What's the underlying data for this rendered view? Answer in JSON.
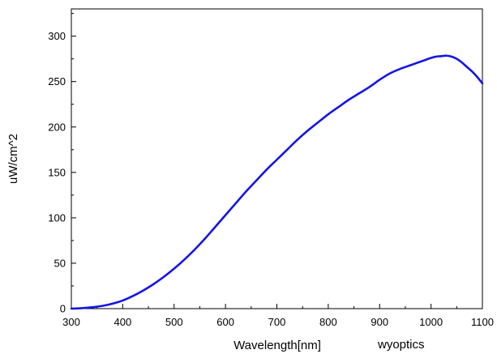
{
  "chart_data": {
    "type": "line",
    "title": "",
    "xlabel": "Wavelength[nm]",
    "ylabel": "uW/cm^2",
    "annotation": "wyoptics",
    "xlim": [
      300,
      1100
    ],
    "ylim": [
      0,
      330
    ],
    "x_ticks": [
      300,
      400,
      500,
      600,
      700,
      800,
      900,
      1000,
      1100
    ],
    "y_ticks": [
      0,
      50,
      100,
      150,
      200,
      250,
      300
    ],
    "grid": false,
    "line_color": "#1414e6",
    "series": [
      {
        "x": [
          300,
          320,
          340,
          360,
          380,
          400,
          420,
          440,
          460,
          480,
          500,
          520,
          540,
          560,
          580,
          600,
          620,
          640,
          660,
          680,
          700,
          720,
          740,
          760,
          780,
          800,
          820,
          840,
          860,
          880,
          900,
          920,
          940,
          960,
          980,
          1000,
          1010,
          1020,
          1030,
          1040,
          1050,
          1060,
          1070,
          1080,
          1090,
          1100
        ],
        "y": [
          0,
          0.5,
          1.5,
          3,
          5.5,
          9,
          14,
          20,
          27,
          35,
          44,
          54,
          65,
          77,
          90,
          103,
          116,
          129,
          141,
          153,
          164,
          175,
          186,
          196,
          205,
          214,
          222,
          230,
          237,
          244,
          252,
          259,
          264,
          268,
          272,
          276,
          277.5,
          278,
          278.5,
          277.5,
          275,
          271,
          266,
          261,
          255,
          248
        ]
      }
    ]
  }
}
